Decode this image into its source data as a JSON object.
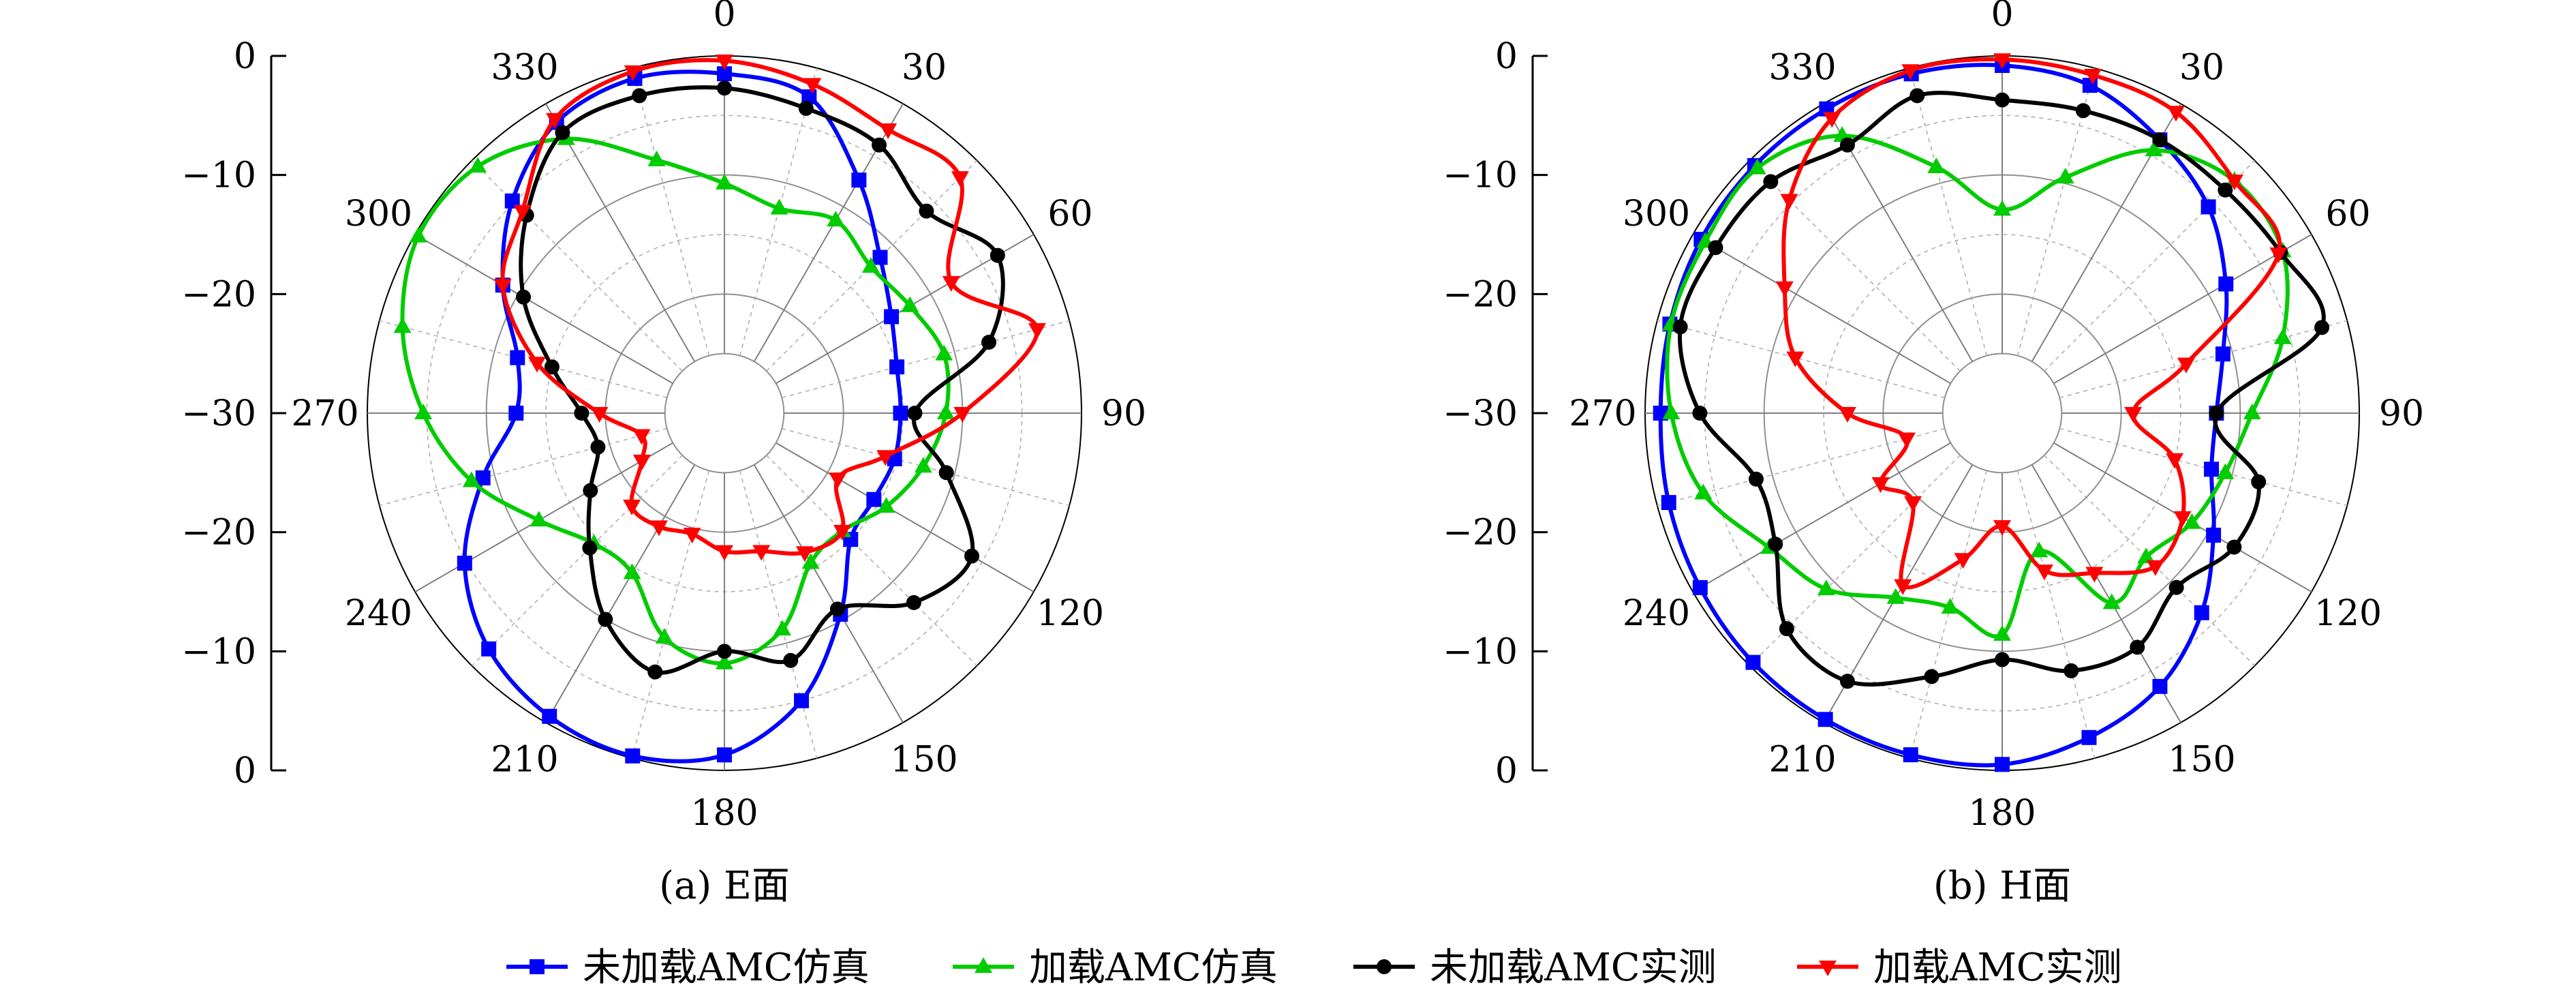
{
  "chart_data": [
    {
      "type": "polar-line",
      "caption": "(a) E面",
      "angle_unit": "deg",
      "angle_ticks": [
        "0",
        "30",
        "60",
        "90",
        "120",
        "150",
        "180",
        "210",
        "240",
        "270",
        "300",
        "330"
      ],
      "radial_ticks_top": [
        "0",
        "−10",
        "−20",
        "−30"
      ],
      "radial_ticks_bottom": [
        "−20",
        "−10",
        "0"
      ],
      "rlim": [
        -30,
        0
      ],
      "angles": [
        0,
        15,
        30,
        45,
        60,
        75,
        90,
        105,
        120,
        135,
        150,
        165,
        180,
        195,
        210,
        225,
        240,
        255,
        270,
        285,
        300,
        315,
        330,
        345
      ],
      "series": [
        {
          "name": "未加载AMC仿真",
          "color": "#0000ff",
          "marker": "square",
          "values": [
            -1.5,
            -2.5,
            -7.4,
            -11.5,
            -13.8,
            -15,
            -15.2,
            -15.2,
            -15.5,
            -15,
            -10.5,
            -5,
            -1.3,
            -0.2,
            -0.6,
            -2,
            -4.8,
            -9,
            -12.5,
            -12,
            -8.5,
            -4.8,
            -1.8,
            -0.9
          ]
        },
        {
          "name": "加载AMC仿真",
          "color": "#00cc00",
          "marker": "triangle-up",
          "values": [
            -10.7,
            -12.2,
            -11.3,
            -12.6,
            -12,
            -10.9,
            -11.4,
            -12.7,
            -14.3,
            -16,
            -15.5,
            -11.2,
            -9,
            -10.5,
            -14.5,
            -14.5,
            -12,
            -8,
            -4.7,
            -2,
            -0.3,
            -0.7,
            -3.4,
            -8
          ]
        },
        {
          "name": "未加载AMC实测",
          "color": "#000000",
          "marker": "circle",
          "values": [
            -2.7,
            -3.5,
            -4,
            -6,
            -3.5,
            -7,
            -14,
            -10.7,
            -6,
            -7.5,
            -11,
            -8.5,
            -10,
            -7.5,
            -10,
            -14,
            -17,
            -19,
            -18,
            -15,
            -10.5,
            -6.5,
            -2.8,
            -2.4
          ]
        },
        {
          "name": "加载AMC实测",
          "color": "#ff0000",
          "marker": "triangle-down",
          "values": [
            -0.4,
            -1.4,
            -2.5,
            -2,
            -8,
            -2.8,
            -10,
            -16,
            -19,
            -16,
            -16.5,
            -18,
            -18.4,
            -19.5,
            -19,
            -19,
            -22,
            -22.8,
            -19.5,
            -13.7,
            -8.5,
            -6,
            -1.5,
            -0.3
          ]
        }
      ]
    },
    {
      "type": "polar-line",
      "caption": "(b) H面",
      "angle_unit": "deg",
      "angle_ticks": [
        "0",
        "30",
        "60",
        "90",
        "120",
        "150",
        "180",
        "210",
        "240",
        "270",
        "300",
        "330"
      ],
      "radial_ticks_top": [
        "0",
        "−10",
        "−20",
        "−30"
      ],
      "radial_ticks_bottom": [
        "−20",
        "−10",
        "0"
      ],
      "rlim": [
        -30,
        0
      ],
      "angles": [
        0,
        15,
        30,
        45,
        60,
        75,
        90,
        105,
        120,
        135,
        150,
        165,
        180,
        195,
        210,
        225,
        240,
        255,
        270,
        285,
        300,
        315,
        330,
        345
      ],
      "series": [
        {
          "name": "未加载AMC仿真",
          "color": "#0000ff",
          "marker": "square",
          "values": [
            -0.8,
            -1.5,
            -3.5,
            -5.5,
            -8.3,
            -10.8,
            -12,
            -11.8,
            -9.5,
            -6.3,
            -3.5,
            -1.8,
            -0.5,
            -0.3,
            -0.3,
            -0.4,
            -0.7,
            -1,
            -1.3,
            -1.1,
            -0.8,
            -0.6,
            -0.5,
            -0.5
          ]
        },
        {
          "name": "加载AMC仿真",
          "color": "#00cc00",
          "marker": "triangle-up",
          "values": [
            -12.9,
            -9.5,
            -4.5,
            -2.4,
            -2.8,
            -5.6,
            -9,
            -10.6,
            -11.6,
            -12.9,
            -11.6,
            -18,
            -11.4,
            -13.1,
            -12.1,
            -9.1,
            -7.4,
            -4,
            -2.2,
            -1.2,
            -1.2,
            -0.9,
            -3.1,
            -8.6
          ]
        },
        {
          "name": "未加载AMC实测",
          "color": "#000000",
          "marker": "circle",
          "values": [
            -3.7,
            -3.7,
            -3.5,
            -3.5,
            -3,
            -2.2,
            -12,
            -7.7,
            -7.5,
            -9.3,
            -7.3,
            -7.6,
            -9.3,
            -7.1,
            -4,
            -4.4,
            -8,
            -8.6,
            -4.6,
            -2,
            -2.2,
            -2.5,
            -4,
            -2.4
          ]
        },
        {
          "name": "加载AMC实测",
          "color": "#ff0000",
          "marker": "triangle-down",
          "values": [
            -0.3,
            -0.6,
            -0.8,
            -2.4,
            -3.2,
            -14,
            -19,
            -15,
            -12.5,
            -11.8,
            -14.5,
            -16.3,
            -20.5,
            -17.3,
            -13.3,
            -19.4,
            -18.2,
            -21.7,
            -17,
            -12,
            -8.9,
            -4.7,
            -1.4,
            -0.2
          ]
        }
      ]
    }
  ],
  "legend": {
    "placement": "bottom-center",
    "items": [
      "未加载AMC仿真",
      "加载AMC仿真",
      "未加载AMC实测",
      "加载AMC实测"
    ]
  }
}
